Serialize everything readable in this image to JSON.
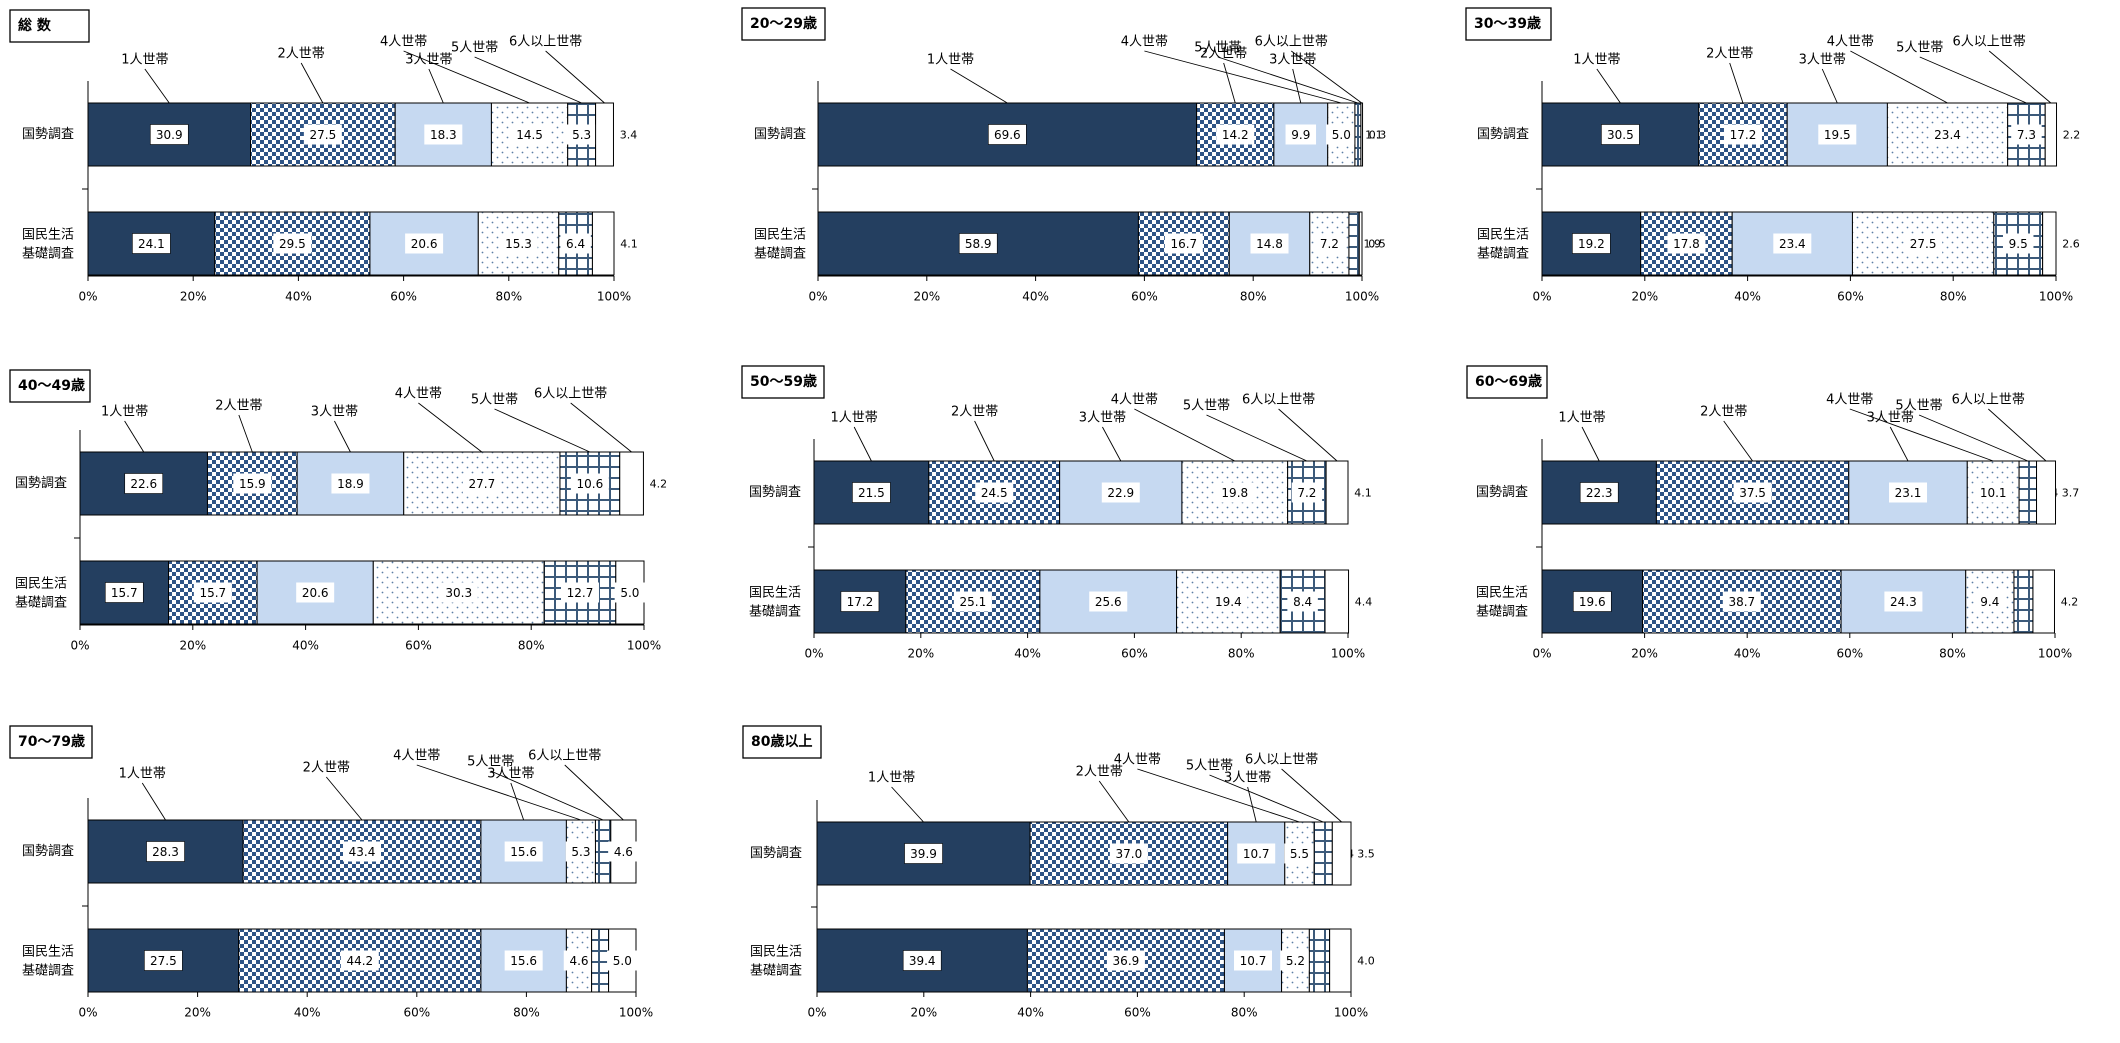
{
  "legend_categories": [
    "1人世帯",
    "2人世帯",
    "3人世帯",
    "4人世帯",
    "5人世帯",
    "6人以上世帯"
  ],
  "colors": {
    "one_person": "#243f60",
    "two_person_check": "#1f4e79",
    "three_person": "#c6d9f1",
    "four_person_dot": "#7f9fbf",
    "five_person_grid": "#3c5a7a",
    "six_plus": "#ffffff",
    "outline": "#000000"
  },
  "x_ticks": [
    "0%",
    "20%",
    "40%",
    "60%",
    "80%",
    "100%"
  ],
  "chart_data": [
    {
      "type": "bar",
      "stacked": "horizontal-100%",
      "title": "総 数",
      "categories": [
        "国勢調査",
        "国民生活 基礎調査"
      ],
      "series": [
        {
          "name": "1人世帯",
          "values": [
            30.9,
            24.1
          ]
        },
        {
          "name": "2人世帯",
          "values": [
            27.5,
            29.5
          ]
        },
        {
          "name": "3人世帯",
          "values": [
            18.3,
            20.6
          ]
        },
        {
          "name": "4人世帯",
          "values": [
            14.5,
            15.3
          ]
        },
        {
          "name": "5人世帯",
          "values": [
            5.3,
            6.4
          ]
        },
        {
          "name": "6人以上世帯",
          "values": [
            3.4,
            4.1
          ]
        }
      ],
      "xlim": [
        0,
        100
      ]
    },
    {
      "type": "bar",
      "stacked": "horizontal-100%",
      "title": "20～29歳",
      "categories": [
        "国勢調査",
        "国民生活 基礎調査"
      ],
      "series": [
        {
          "name": "1人世帯",
          "values": [
            69.6,
            58.9
          ]
        },
        {
          "name": "2人世帯",
          "values": [
            14.2,
            16.7
          ]
        },
        {
          "name": "3人世帯",
          "values": [
            9.9,
            14.8
          ]
        },
        {
          "name": "4人世帯",
          "values": [
            5.0,
            7.2
          ]
        },
        {
          "name": "5人世帯",
          "values": [
            1.1,
            1.9
          ]
        },
        {
          "name": "6人以上世帯",
          "values": [
            0.3,
            0.5
          ]
        }
      ],
      "xlim": [
        0,
        100
      ]
    },
    {
      "type": "bar",
      "stacked": "horizontal-100%",
      "title": "30～39歳",
      "categories": [
        "国勢調査",
        "国民生活 基礎調査"
      ],
      "series": [
        {
          "name": "1人世帯",
          "values": [
            30.5,
            19.2
          ]
        },
        {
          "name": "2人世帯",
          "values": [
            17.2,
            17.8
          ]
        },
        {
          "name": "3人世帯",
          "values": [
            19.5,
            23.4
          ]
        },
        {
          "name": "4人世帯",
          "values": [
            23.4,
            27.5
          ]
        },
        {
          "name": "5人世帯",
          "values": [
            7.3,
            9.5
          ]
        },
        {
          "name": "6人以上世帯",
          "values": [
            2.2,
            2.6
          ]
        }
      ],
      "xlim": [
        0,
        100
      ]
    },
    {
      "type": "bar",
      "stacked": "horizontal-100%",
      "title": "40～49歳",
      "categories": [
        "国勢調査",
        "国民生活 基礎調査"
      ],
      "series": [
        {
          "name": "1人世帯",
          "values": [
            22.6,
            15.7
          ]
        },
        {
          "name": "2人世帯",
          "values": [
            15.9,
            15.7
          ]
        },
        {
          "name": "3人世帯",
          "values": [
            18.9,
            20.6
          ]
        },
        {
          "name": "4人世帯",
          "values": [
            27.7,
            30.3
          ]
        },
        {
          "name": "5人世帯",
          "values": [
            10.6,
            12.7
          ]
        },
        {
          "name": "6人以上世帯",
          "values": [
            4.2,
            5.0
          ]
        }
      ],
      "xlim": [
        0,
        100
      ]
    },
    {
      "type": "bar",
      "stacked": "horizontal-100%",
      "title": "50～59歳",
      "categories": [
        "国勢調査",
        "国民生活 基礎調査"
      ],
      "series": [
        {
          "name": "1人世帯",
          "values": [
            21.5,
            17.2
          ]
        },
        {
          "name": "2人世帯",
          "values": [
            24.5,
            25.1
          ]
        },
        {
          "name": "3人世帯",
          "values": [
            22.9,
            25.6
          ]
        },
        {
          "name": "4人世帯",
          "values": [
            19.8,
            19.4
          ]
        },
        {
          "name": "5人世帯",
          "values": [
            7.2,
            8.4
          ]
        },
        {
          "name": "6人以上世帯",
          "values": [
            4.1,
            4.4
          ]
        }
      ],
      "xlim": [
        0,
        100
      ]
    },
    {
      "type": "bar",
      "stacked": "horizontal-100%",
      "title": "60～69歳",
      "categories": [
        "国勢調査",
        "国民生活 基礎調査"
      ],
      "series": [
        {
          "name": "1人世帯",
          "values": [
            22.3,
            19.6
          ]
        },
        {
          "name": "2人世帯",
          "values": [
            37.5,
            38.7
          ]
        },
        {
          "name": "3人世帯",
          "values": [
            23.1,
            24.3
          ]
        },
        {
          "name": "4人世帯",
          "values": [
            10.1,
            9.4
          ]
        },
        {
          "name": "5人世帯",
          "values": [
            3.4,
            3.7
          ]
        },
        {
          "name": "6人以上世帯",
          "values": [
            3.7,
            4.2
          ]
        }
      ],
      "xlim": [
        0,
        100
      ]
    },
    {
      "type": "bar",
      "stacked": "horizontal-100%",
      "title": "70～79歳",
      "categories": [
        "国勢調査",
        "国民生活 基礎調査"
      ],
      "series": [
        {
          "name": "1人世帯",
          "values": [
            28.3,
            27.5
          ]
        },
        {
          "name": "2人世帯",
          "values": [
            43.4,
            44.2
          ]
        },
        {
          "name": "3人世帯",
          "values": [
            15.6,
            15.6
          ]
        },
        {
          "name": "4人世帯",
          "values": [
            5.3,
            4.6
          ]
        },
        {
          "name": "5人世帯",
          "values": [
            2.8,
            3.1
          ]
        },
        {
          "name": "6人以上世帯",
          "values": [
            4.6,
            5.0
          ]
        }
      ],
      "xlim": [
        0,
        100
      ]
    },
    {
      "type": "bar",
      "stacked": "horizontal-100%",
      "title": "80歳以上",
      "categories": [
        "国勢調査",
        "国民生活 基礎調査"
      ],
      "series": [
        {
          "name": "1人世帯",
          "values": [
            39.9,
            39.4
          ]
        },
        {
          "name": "2人世帯",
          "values": [
            37.0,
            36.9
          ]
        },
        {
          "name": "3人世帯",
          "values": [
            10.7,
            10.7
          ]
        },
        {
          "name": "4人世帯",
          "values": [
            5.5,
            5.2
          ]
        },
        {
          "name": "5人世帯",
          "values": [
            3.4,
            3.8
          ]
        },
        {
          "name": "6人以上世帯",
          "values": [
            3.5,
            4.0
          ]
        }
      ],
      "xlim": [
        0,
        100
      ]
    }
  ]
}
